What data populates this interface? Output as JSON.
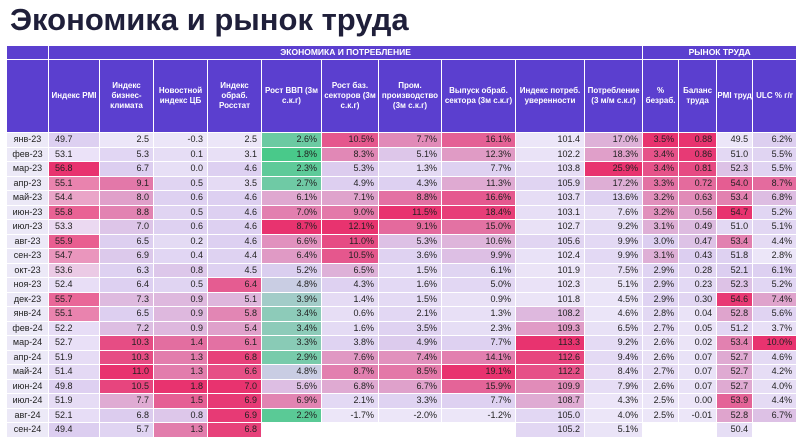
{
  "title": "Экономика и рынок труда",
  "chart_data": {
    "type": "table",
    "sections": [
      {
        "label": "ЭКОНОМИКА И ПОТРЕБЛЕНИЕ",
        "span": 11
      },
      {
        "label": "РЫНОК ТРУДА",
        "span": 4
      }
    ],
    "columns": [
      "Индекс PMI",
      "Индекс бизнес-климата",
      "Новостной индекс ЦБ",
      "Индекс обраб. Росстат",
      "Рост ВВП (3м с.к.г)",
      "Рост баз. секторов (3м с.к.г)",
      "Пром. производство (3м с.к.г)",
      "Выпуск обраб. сектора (3м с.к.г)",
      "Индекс потреб. уверенности",
      "Потребление (3 м/м с.к.г)",
      "% безраб.",
      "Баланс труда",
      "PMI труд",
      "ULC % г/г"
    ],
    "rows": [
      {
        "month": "янв-23",
        "values": [
          "49.7",
          "2.5",
          "-0.3",
          "2.5",
          "2.6%",
          "10.5%",
          "7.7%",
          "16.1%",
          "101.4",
          "17.0%",
          "3.5%",
          "0.88",
          "49.5",
          "6.2%"
        ]
      },
      {
        "month": "фев-23",
        "values": [
          "53.1",
          "5.3",
          "0.1",
          "3.1",
          "1.8%",
          "8.3%",
          "5.1%",
          "12.3%",
          "102.2",
          "18.3%",
          "3.4%",
          "0.86",
          "51.0",
          "5.5%"
        ]
      },
      {
        "month": "мар-23",
        "values": [
          "56.8",
          "6.7",
          "0.0",
          "4.6",
          "2.3%",
          "5.3%",
          "1.3%",
          "7.7%",
          "103.8",
          "25.9%",
          "3.4%",
          "0.81",
          "52.3",
          "5.5%"
        ]
      },
      {
        "month": "апр-23",
        "values": [
          "55.1",
          "9.1",
          "0.5",
          "3.5",
          "2.7%",
          "4.9%",
          "4.3%",
          "11.3%",
          "105.9",
          "17.2%",
          "3.3%",
          "0.72",
          "54.0",
          "8.7%"
        ]
      },
      {
        "month": "май-23",
        "values": [
          "54.4",
          "8.0",
          "0.6",
          "4.6",
          "6.1%",
          "7.1%",
          "8.8%",
          "16.6%",
          "103.7",
          "13.6%",
          "3.2%",
          "0.63",
          "53.4",
          "6.8%"
        ]
      },
      {
        "month": "июн-23",
        "values": [
          "55.8",
          "8.8",
          "0.5",
          "4.6",
          "7.0%",
          "9.0%",
          "11.5%",
          "18.4%",
          "103.1",
          "7.6%",
          "3.2%",
          "0.56",
          "54.7",
          "5.2%"
        ]
      },
      {
        "month": "июл-23",
        "values": [
          "53.3",
          "7.0",
          "0.6",
          "4.6",
          "8.7%",
          "12.1%",
          "9.1%",
          "15.0%",
          "102.7",
          "9.2%",
          "3.1%",
          "0.49",
          "51.0",
          "5.1%"
        ]
      },
      {
        "month": "авг-23",
        "values": [
          "55.9",
          "6.5",
          "0.2",
          "4.6",
          "6.6%",
          "11.0%",
          "5.3%",
          "10.6%",
          "105.6",
          "9.9%",
          "3.0%",
          "0.47",
          "53.4",
          "4.4%"
        ]
      },
      {
        "month": "сен-23",
        "values": [
          "54.7",
          "6.9",
          "0.4",
          "4.4",
          "6.4%",
          "10.5%",
          "3.6%",
          "9.9%",
          "102.4",
          "9.9%",
          "3.1%",
          "0.43",
          "51.8",
          "2.8%"
        ]
      },
      {
        "month": "окт-23",
        "values": [
          "53.6",
          "6.3",
          "0.8",
          "4.5",
          "5.2%",
          "6.5%",
          "1.5%",
          "6.1%",
          "101.9",
          "7.5%",
          "2.9%",
          "0.28",
          "52.1",
          "6.1%"
        ]
      },
      {
        "month": "ноя-23",
        "values": [
          "52.4",
          "6.4",
          "0.5",
          "6.4",
          "4.8%",
          "4.3%",
          "1.6%",
          "5.0%",
          "102.3",
          "5.1%",
          "2.9%",
          "0.23",
          "52.3",
          "5.2%"
        ]
      },
      {
        "month": "дек-23",
        "values": [
          "55.7",
          "7.3",
          "0.9",
          "5.1",
          "3.9%",
          "1.4%",
          "1.5%",
          "0.9%",
          "101.8",
          "4.5%",
          "2.9%",
          "0.30",
          "54.6",
          "7.4%"
        ]
      },
      {
        "month": "янв-24",
        "values": [
          "55.1",
          "6.5",
          "0.9",
          "5.8",
          "3.4%",
          "0.6%",
          "2.1%",
          "1.3%",
          "108.2",
          "4.6%",
          "2.8%",
          "0.04",
          "52.8",
          "5.6%"
        ]
      },
      {
        "month": "фев-24",
        "values": [
          "52.2",
          "7.2",
          "0.9",
          "5.4",
          "3.4%",
          "1.6%",
          "3.5%",
          "2.3%",
          "109.3",
          "6.5%",
          "2.7%",
          "0.05",
          "51.2",
          "3.7%"
        ]
      },
      {
        "month": "мар-24",
        "values": [
          "52.7",
          "10.3",
          "1.4",
          "6.1",
          "3.3%",
          "3.8%",
          "4.9%",
          "7.7%",
          "113.3",
          "9.2%",
          "2.6%",
          "0.02",
          "53.4",
          "10.0%"
        ]
      },
      {
        "month": "апр-24",
        "values": [
          "51.9",
          "10.3",
          "1.3",
          "6.8",
          "2.9%",
          "7.6%",
          "7.4%",
          "14.1%",
          "112.6",
          "9.4%",
          "2.6%",
          "0.07",
          "52.7",
          "4.6%"
        ]
      },
      {
        "month": "май-24",
        "values": [
          "51.4",
          "11.0",
          "1.3",
          "6.6",
          "4.8%",
          "8.7%",
          "8.5%",
          "19.1%",
          "112.2",
          "8.4%",
          "2.7%",
          "0.07",
          "52.7",
          "4.2%"
        ]
      },
      {
        "month": "июн-24",
        "values": [
          "49.8",
          "10.5",
          "1.8",
          "7.0",
          "5.6%",
          "6.8%",
          "6.7%",
          "15.9%",
          "109.9",
          "7.9%",
          "2.6%",
          "0.07",
          "52.7",
          "4.0%"
        ]
      },
      {
        "month": "июл-24",
        "values": [
          "51.9",
          "7.7",
          "1.5",
          "6.9",
          "6.9%",
          "2.1%",
          "3.3%",
          "7.7%",
          "108.7",
          "4.3%",
          "2.5%",
          "0.00",
          "53.9",
          "4.4%"
        ]
      },
      {
        "month": "авг-24",
        "values": [
          "52.1",
          "6.8",
          "0.8",
          "6.9",
          "2.2%",
          "-1.7%",
          "-2.0%",
          "-1.2%",
          "105.0",
          "4.0%",
          "2.5%",
          "-0.01",
          "52.8",
          "6.7%"
        ]
      },
      {
        "month": "сен-24",
        "values": [
          "49.4",
          "5.7",
          "1.3",
          "6.8",
          "",
          "",
          "",
          "",
          "105.2",
          "5.1%",
          "",
          "",
          "50.4",
          ""
        ]
      }
    ],
    "colors": {
      "header": "#5b3fcf",
      "high": "#e8336f",
      "mid": "#d6c8ef",
      "low": "#49c98a",
      "blank": "#ffffff"
    }
  }
}
